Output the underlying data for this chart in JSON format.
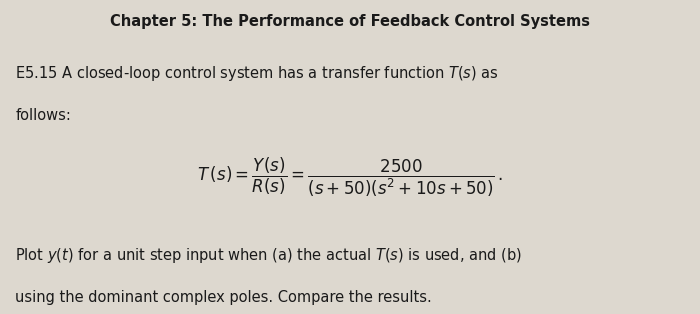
{
  "title": "Chapter 5: The Performance of Feedback Control Systems",
  "title_fontsize": 10.5,
  "line1": "E5.15 A closed-loop control system has a transfer function $T(s)$ as",
  "line2": "follows:",
  "equation": "$T\\,(s) = \\dfrac{Y(s)}{R(s)} = \\dfrac{2500}{(s + 50)(s^2 + 10s + 50)}\\,.$",
  "line3": "Plot $y(t)$ for a unit step input when (a) the actual $T(s)$ is used, and (b)",
  "line4": "using the dominant complex poles. Compare the results.",
  "bg_color": "#ddd8cf",
  "text_color": "#1a1a1a",
  "font_size_body": 10.5,
  "eq_font_size": 12,
  "fig_width": 7.0,
  "fig_height": 3.14,
  "dpi": 100
}
